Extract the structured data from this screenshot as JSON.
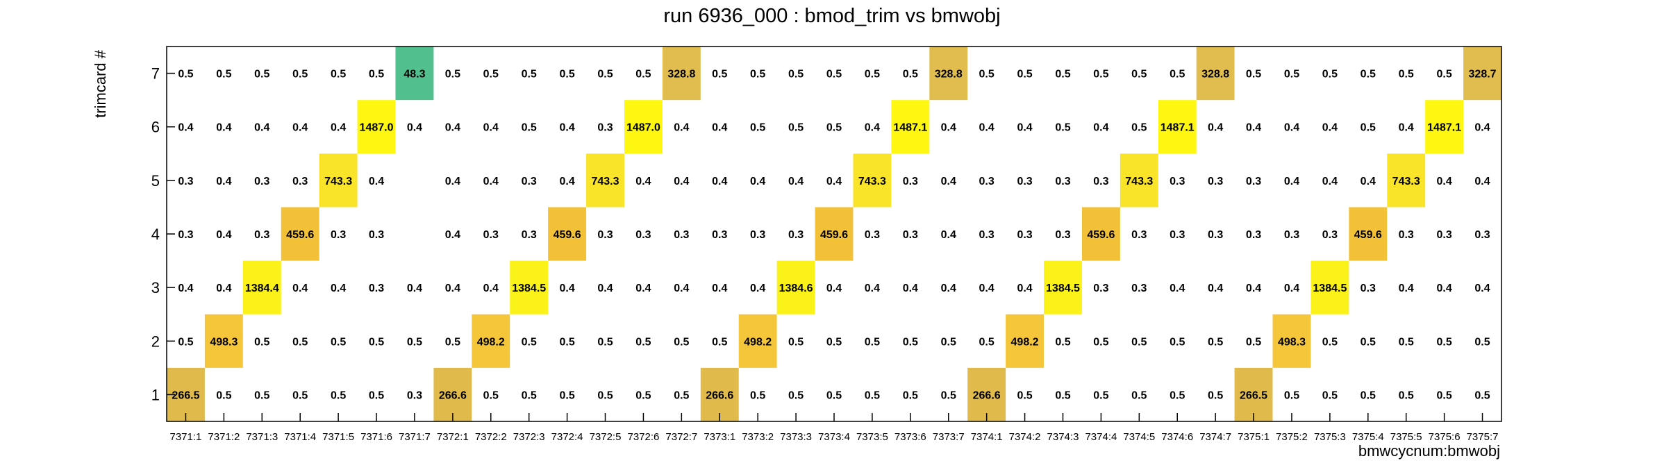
{
  "chart_data": {
    "type": "heatmap",
    "title": "run 6936_000 : bmod_trim vs bmwobj",
    "xlabel": "bmwcycnum:bmwobj",
    "ylabel": "trimcard #",
    "x_categories": [
      "7371:1",
      "7371:2",
      "7371:3",
      "7371:4",
      "7371:5",
      "7371:6",
      "7371:7",
      "7372:1",
      "7372:2",
      "7372:3",
      "7372:4",
      "7372:5",
      "7372:6",
      "7372:7",
      "7373:1",
      "7373:2",
      "7373:3",
      "7373:4",
      "7373:5",
      "7373:6",
      "7373:7",
      "7374:1",
      "7374:2",
      "7374:3",
      "7374:4",
      "7374:5",
      "7374:6",
      "7374:7",
      "7375:1",
      "7375:2",
      "7375:3",
      "7375:4",
      "7375:5",
      "7375:6",
      "7375:7"
    ],
    "y_categories": [
      "1",
      "2",
      "3",
      "4",
      "5",
      "6",
      "7"
    ],
    "values": [
      [
        266.5,
        0.5,
        0.5,
        0.5,
        0.5,
        0.5,
        0.3,
        266.6,
        0.5,
        0.5,
        0.5,
        0.5,
        0.5,
        0.5,
        266.6,
        0.5,
        0.5,
        0.5,
        0.5,
        0.5,
        0.5,
        266.6,
        0.5,
        0.5,
        0.5,
        0.5,
        0.5,
        0.5,
        266.5,
        0.5,
        0.5,
        0.5,
        0.5,
        0.5,
        0.5
      ],
      [
        0.5,
        498.3,
        0.5,
        0.5,
        0.5,
        0.5,
        0.5,
        0.5,
        498.2,
        0.5,
        0.5,
        0.5,
        0.5,
        0.5,
        0.5,
        498.2,
        0.5,
        0.5,
        0.5,
        0.5,
        0.5,
        0.5,
        498.2,
        0.5,
        0.5,
        0.5,
        0.5,
        0.5,
        0.5,
        498.3,
        0.5,
        0.5,
        0.5,
        0.5,
        0.5
      ],
      [
        0.4,
        0.4,
        1384.4,
        0.4,
        0.4,
        0.3,
        0.4,
        0.4,
        0.4,
        1384.5,
        0.4,
        0.4,
        0.4,
        0.4,
        0.4,
        0.4,
        1384.6,
        0.4,
        0.4,
        0.4,
        0.4,
        0.4,
        0.4,
        1384.5,
        0.3,
        0.3,
        0.4,
        0.4,
        0.4,
        0.4,
        1384.5,
        0.3,
        0.4,
        0.4,
        0.4
      ],
      [
        0.3,
        0.4,
        0.3,
        459.6,
        0.3,
        0.3,
        null,
        0.4,
        0.3,
        0.3,
        459.6,
        0.3,
        0.3,
        0.3,
        0.3,
        0.3,
        0.3,
        459.6,
        0.3,
        0.3,
        0.4,
        0.3,
        0.3,
        0.3,
        459.6,
        0.3,
        0.3,
        0.3,
        0.3,
        0.3,
        0.3,
        459.6,
        0.3,
        0.3,
        0.3
      ],
      [
        0.3,
        0.4,
        0.3,
        0.3,
        743.3,
        0.4,
        null,
        0.4,
        0.4,
        0.3,
        0.4,
        743.3,
        0.4,
        0.4,
        0.4,
        0.4,
        0.4,
        0.4,
        743.3,
        0.3,
        0.4,
        0.3,
        0.3,
        0.3,
        0.3,
        743.3,
        0.3,
        0.3,
        0.3,
        0.4,
        0.4,
        0.4,
        743.3,
        0.4,
        0.4
      ],
      [
        0.4,
        0.4,
        0.4,
        0.4,
        0.4,
        1487.0,
        0.4,
        0.4,
        0.4,
        0.5,
        0.4,
        0.3,
        1487.0,
        0.4,
        0.4,
        0.5,
        0.5,
        0.5,
        0.4,
        1487.1,
        0.4,
        0.4,
        0.4,
        0.5,
        0.4,
        0.5,
        1487.1,
        0.4,
        0.4,
        0.4,
        0.4,
        0.5,
        0.4,
        1487.1,
        0.4
      ],
      [
        0.5,
        0.5,
        0.5,
        0.5,
        0.5,
        0.5,
        48.3,
        0.5,
        0.5,
        0.5,
        0.5,
        0.5,
        0.5,
        328.8,
        0.5,
        0.5,
        0.5,
        0.5,
        0.5,
        0.5,
        328.8,
        0.5,
        0.5,
        0.5,
        0.5,
        0.5,
        0.5,
        328.8,
        0.5,
        0.5,
        0.5,
        0.5,
        0.5,
        0.5,
        328.7
      ]
    ],
    "colors": {
      "c266": "#e0bb4c",
      "c328": "#e0bd4e",
      "c459": "#f3c138",
      "c498": "#f5c63a",
      "c743": "#f9e42a",
      "c1384": "#fbf21a",
      "c1487": "#fdf712",
      "c48": "#52bf8f"
    },
    "grid": false,
    "legend": "none"
  }
}
